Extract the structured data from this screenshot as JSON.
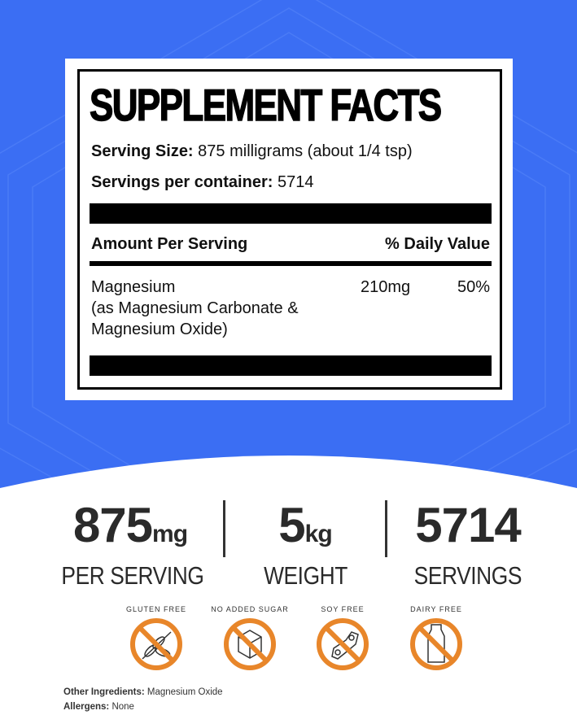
{
  "colors": {
    "background_blue": "#3b6ef3",
    "badge_orange": "#e8862a"
  },
  "facts": {
    "title": "SUPPLEMENT FACTS",
    "serving_size_label": "Serving Size:",
    "serving_size_value": "875 milligrams (about 1/4 tsp)",
    "servings_label": "Servings per container:",
    "servings_value": "5714",
    "amount_header": "Amount Per Serving",
    "dv_header": "% Daily Value",
    "ingredient_line1": "Magnesium",
    "ingredient_line2": "(as Magnesium Carbonate &",
    "ingredient_line3": "Magnesium Oxide)",
    "amount": "210mg",
    "dv": "50%"
  },
  "stats": [
    {
      "value": "875",
      "unit": "mg",
      "label": "PER SERVING"
    },
    {
      "value": "5",
      "unit": "kg",
      "label": "WEIGHT"
    },
    {
      "value": "5714",
      "unit": "",
      "label": "SERVINGS"
    }
  ],
  "badges": [
    {
      "label": "GLUTEN FREE",
      "icon": "wheat-icon"
    },
    {
      "label": "NO ADDED SUGAR",
      "icon": "sugar-cube-icon"
    },
    {
      "label": "SOY FREE",
      "icon": "soybean-icon"
    },
    {
      "label": "DAIRY FREE",
      "icon": "milk-bottle-icon"
    }
  ],
  "footer": {
    "other_label": "Other Ingredients:",
    "other_value": "Magnesium Oxide",
    "allergens_label": "Allergens:",
    "allergens_value": "None"
  }
}
